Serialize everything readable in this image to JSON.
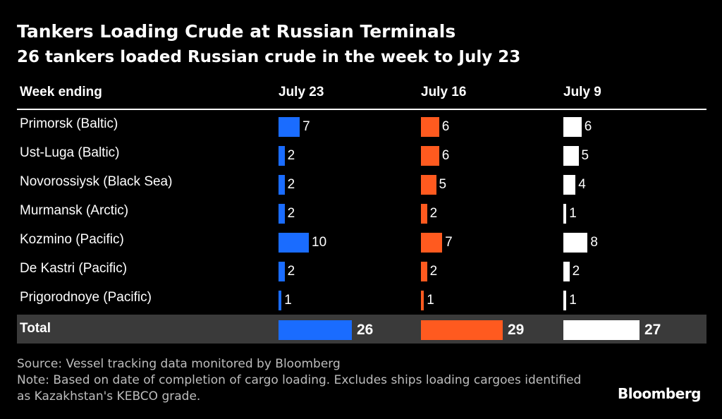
{
  "title": "Tankers Loading Crude at Russian Terminals",
  "subtitle": "26 tankers loaded Russian crude in the week to July 23",
  "footer": {
    "source": "Source: Vessel tracking data monitored by Bloomberg",
    "note": "Note: Based on date of completion of cargo loading. Excludes ships loading cargoes identified as Kazakhstan's KEBCO grade."
  },
  "logo": "Bloomberg",
  "chart_data": {
    "type": "table",
    "row_header": "Week ending",
    "columns": [
      {
        "name": "July 23",
        "color": "#1a6cff"
      },
      {
        "name": "July 16",
        "color": "#ff5a1f"
      },
      {
        "name": "July 9",
        "color": "#ffffff"
      }
    ],
    "rows": [
      {
        "label": "Primorsk (Baltic)",
        "values": [
          7,
          6,
          6
        ]
      },
      {
        "label": "Ust-Luga (Baltic)",
        "values": [
          2,
          6,
          5
        ]
      },
      {
        "label": "Novorossiysk (Black Sea)",
        "values": [
          2,
          5,
          4
        ]
      },
      {
        "label": "Murmansk (Arctic)",
        "values": [
          2,
          2,
          1
        ]
      },
      {
        "label": "Kozmino (Pacific)",
        "values": [
          10,
          7,
          8
        ]
      },
      {
        "label": "De Kastri (Pacific)",
        "values": [
          2,
          2,
          2
        ]
      },
      {
        "label": "Prigorodnoye (Pacific)",
        "values": [
          1,
          1,
          1
        ]
      }
    ],
    "total": {
      "label": "Total",
      "values": [
        26,
        29,
        27
      ]
    }
  }
}
